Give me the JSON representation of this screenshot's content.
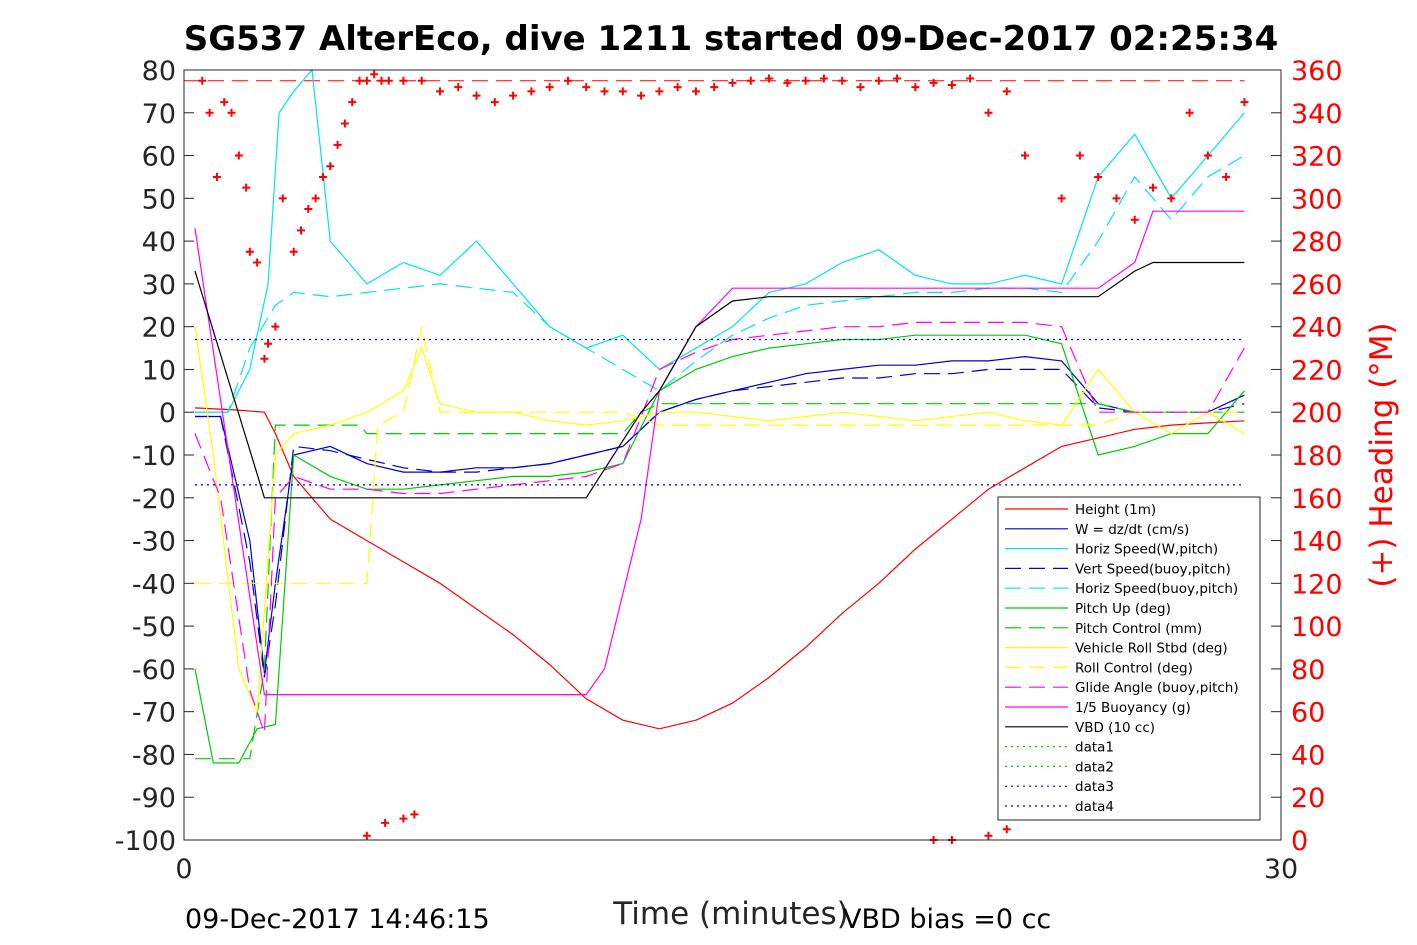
{
  "chart_data": {
    "type": "line",
    "title": "SG537 AlterEco, dive 1211 started 09-Dec-2017 02:25:34",
    "xlabel": "Time (minutes)",
    "ylabel_right": "(+) Heading (°M)",
    "xlim": [
      0,
      30
    ],
    "ylim": [
      -100,
      80
    ],
    "ylim_right": [
      0,
      360
    ],
    "x_ticks": [
      "0",
      "30"
    ],
    "y_ticks": [
      "80",
      "70",
      "60",
      "50",
      "40",
      "30",
      "20",
      "10",
      "0",
      "-10",
      "-20",
      "-30",
      "-40",
      "-50",
      "-60",
      "-70",
      "-80",
      "-90",
      "-100"
    ],
    "y_ticks_right": [
      "360",
      "340",
      "320",
      "300",
      "280",
      "260",
      "240",
      "220",
      "200",
      "180",
      "160",
      "140",
      "120",
      "100",
      "80",
      "60",
      "40",
      "20",
      "0"
    ],
    "footer_left": "09-Dec-2017 14:46:15",
    "footer_right": "VBD bias =0 cc",
    "legend_position": "bottom-right",
    "series": [
      {
        "name": "Height (1m)",
        "color": "#ff0000",
        "dash": "solid",
        "x": [
          0.3,
          1.5,
          2.2,
          2.5,
          3.0,
          4.0,
          5.0,
          6.0,
          7.0,
          8.0,
          9.0,
          10.0,
          11.0,
          12.0,
          13.0,
          14.0,
          15.0,
          16.0,
          17.0,
          18.0,
          19.0,
          20.0,
          21.0,
          22.0,
          23.0,
          24.0,
          25.0,
          26.0,
          27.0,
          28.0,
          29.0
        ],
        "y": [
          1,
          0.5,
          0,
          -5,
          -15,
          -25,
          -30,
          -35,
          -40,
          -46,
          -52,
          -59,
          -67,
          -72,
          -74,
          -72,
          -68,
          -62,
          -55,
          -47,
          -40,
          -32,
          -25,
          -18,
          -13,
          -8,
          -6,
          -4,
          -3,
          -2.5,
          -2
        ]
      },
      {
        "name": "W = dz/dt (cm/s)",
        "color": "#0000cc",
        "dash": "solid",
        "x": [
          0.3,
          1.0,
          1.8,
          2.2,
          2.5,
          3.0,
          4.0,
          5.0,
          6.0,
          7.0,
          8.0,
          9.0,
          10.0,
          11.0,
          12.0,
          13.0,
          14.0,
          15.0,
          16.0,
          17.0,
          18.0,
          19.0,
          20.0,
          21.0,
          22.0,
          23.0,
          24.0,
          25.0,
          26.0,
          27.0,
          28.0,
          29.0
        ],
        "y": [
          -1,
          -1,
          -30,
          -61,
          -40,
          -10,
          -8,
          -12,
          -14,
          -14,
          -13,
          -13,
          -12,
          -10,
          -8,
          0,
          3,
          5,
          7,
          9,
          10,
          11,
          11,
          12,
          12,
          13,
          12,
          2,
          0,
          0,
          0,
          4
        ]
      },
      {
        "name": "Horiz Speed(W,pitch)",
        "color": "#00e5e5",
        "dash": "solid",
        "x": [
          0.3,
          1.2,
          1.8,
          2.3,
          2.6,
          3.0,
          3.5,
          4.0,
          5.0,
          6.0,
          7.0,
          8.0,
          9.0,
          10.0,
          11.0,
          12.0,
          13.0,
          14.0,
          15.0,
          16.0,
          17.0,
          18.0,
          19.0,
          20.0,
          21.0,
          22.0,
          23.0,
          24.0,
          25.0,
          26.0,
          27.0,
          28.0,
          29.0
        ],
        "y": [
          0,
          0,
          10,
          30,
          70,
          75,
          80,
          40,
          30,
          35,
          32,
          40,
          30,
          20,
          15,
          18,
          10,
          15,
          20,
          28,
          30,
          35,
          38,
          32,
          30,
          30,
          32,
          30,
          55,
          65,
          50,
          60,
          70
        ]
      },
      {
        "name": "Vert Speed(buoy,pitch)",
        "color": "#0000cc",
        "dash": "dash",
        "x": [
          0.3,
          1.0,
          1.8,
          2.2,
          2.5,
          3.0,
          4.0,
          5.0,
          6.0,
          7.0,
          8.0,
          9.0,
          10.0,
          11.0,
          12.0,
          13.0,
          14.0,
          15.0,
          16.0,
          17.0,
          18.0,
          19.0,
          20.0,
          21.0,
          22.0,
          23.0,
          24.0,
          25.0,
          26.0,
          27.0,
          28.0,
          29.0
        ],
        "y": [
          -1,
          -1,
          -35,
          -62,
          -45,
          -8,
          -9,
          -11,
          -13,
          -14,
          -14,
          -13,
          -12,
          -10,
          -8,
          0,
          3,
          5,
          6,
          7,
          8,
          8,
          9,
          9,
          10,
          10,
          10,
          1,
          0,
          0,
          0,
          2
        ]
      },
      {
        "name": "Horiz Speed(buoy,pitch)",
        "color": "#00e5e5",
        "dash": "dash",
        "x": [
          0.3,
          1.2,
          1.8,
          2.5,
          3.0,
          4.0,
          5.0,
          6.0,
          7.0,
          8.0,
          9.0,
          10.0,
          11.0,
          12.0,
          13.0,
          14.0,
          15.0,
          16.0,
          17.0,
          18.0,
          19.0,
          20.0,
          21.0,
          22.0,
          23.0,
          24.0,
          25.0,
          26.0,
          27.0,
          28.0,
          29.0
        ],
        "y": [
          0,
          0,
          15,
          25,
          28,
          27,
          28,
          29,
          30,
          29,
          28,
          20,
          15,
          10,
          5,
          12,
          18,
          22,
          25,
          26,
          27,
          28,
          28,
          29,
          29,
          28,
          40,
          55,
          45,
          55,
          60
        ]
      },
      {
        "name": "Pitch Up (deg)",
        "color": "#00cc00",
        "dash": "solid",
        "x": [
          0.3,
          0.8,
          1.5,
          2.0,
          2.5,
          3.0,
          4.0,
          5.0,
          6.0,
          7.0,
          8.0,
          9.0,
          10.0,
          11.0,
          12.0,
          13.0,
          14.0,
          15.0,
          16.0,
          17.0,
          18.0,
          19.0,
          20.0,
          21.0,
          22.0,
          23.0,
          24.0,
          25.0,
          26.0,
          27.0,
          28.0,
          29.0
        ],
        "y": [
          -60,
          -82,
          -82,
          -74,
          -73,
          -10,
          -15,
          -18,
          -18,
          -17,
          -16,
          -15,
          -15,
          -14,
          -12,
          5,
          10,
          13,
          15,
          16,
          17,
          17,
          18,
          18,
          18,
          18,
          16,
          -10,
          -8,
          -5,
          -5,
          5
        ]
      },
      {
        "name": "Pitch Control (mm)",
        "color": "#00cc00",
        "dash": "dash",
        "x": [
          0.3,
          1.0,
          1.8,
          2.2,
          2.5,
          4.8,
          5.0,
          10.0,
          12.0,
          12.5,
          13.0,
          25.0,
          26.0,
          29.0
        ],
        "y": [
          -81,
          -81,
          -81,
          -60,
          -3,
          -3,
          -5,
          -5,
          -5,
          0,
          2,
          2,
          0,
          0
        ]
      },
      {
        "name": "Vehicle Roll Stbd (deg)",
        "color": "#ffff00",
        "dash": "solid",
        "x": [
          0.3,
          0.8,
          1.5,
          2.0,
          2.5,
          3.0,
          4.0,
          5.0,
          6.0,
          6.5,
          7.0,
          8.0,
          9.0,
          10.0,
          11.0,
          12.0,
          13.0,
          14.0,
          15.0,
          16.0,
          17.0,
          18.0,
          19.0,
          20.0,
          21.0,
          22.0,
          23.0,
          24.0,
          25.0,
          26.0,
          27.0,
          28.0,
          29.0
        ],
        "y": [
          20,
          -10,
          -60,
          -70,
          -10,
          -5,
          -3,
          0,
          5,
          15,
          2,
          0,
          0,
          -2,
          -3,
          -2,
          0,
          0,
          -1,
          -2,
          -1,
          0,
          -1,
          -2,
          -1,
          0,
          -2,
          -3,
          10,
          0,
          -5,
          0,
          -5
        ]
      },
      {
        "name": "Roll Control (deg)",
        "color": "#ffff00",
        "dash": "dash",
        "x": [
          0.3,
          1.0,
          2.0,
          2.5,
          3.0,
          4.0,
          5.0,
          5.3,
          6.0,
          6.5,
          7.0,
          8.0,
          12.0,
          13.0,
          25.0,
          26.0,
          27.0,
          29.0
        ],
        "y": [
          -40,
          -40,
          -40,
          -40,
          -40,
          -40,
          -40,
          -3,
          0,
          20,
          0,
          0,
          0,
          -3,
          -3,
          0,
          0,
          0
        ]
      },
      {
        "name": "Glide Angle (buoy,pitch)",
        "color": "#ff00ff",
        "dash": "dash",
        "x": [
          0.3,
          1.0,
          1.8,
          2.2,
          2.5,
          3.0,
          4.0,
          5.0,
          6.0,
          7.0,
          8.0,
          9.0,
          10.0,
          11.0,
          12.0,
          13.0,
          14.0,
          15.0,
          16.0,
          17.0,
          18.0,
          19.0,
          20.0,
          21.0,
          22.0,
          23.0,
          24.0,
          25.0,
          26.0,
          27.0,
          28.0,
          29.0
        ],
        "y": [
          -5,
          -20,
          -65,
          -75,
          -20,
          -15,
          -18,
          -18,
          -19,
          -19,
          -18,
          -17,
          -16,
          -15,
          -12,
          10,
          14,
          17,
          18,
          19,
          20,
          20,
          21,
          21,
          21,
          21,
          20,
          0,
          0,
          0,
          0,
          15
        ]
      },
      {
        "name": "1/5 Buoyancy (g)",
        "color": "#ff00ff",
        "dash": "solid",
        "x": [
          0.3,
          2.2,
          2.5,
          10.0,
          11.0,
          11.5,
          12.5,
          13.0,
          14.0,
          15.0,
          16.0,
          17.0,
          24.0,
          25.0,
          26.0,
          26.5,
          28.0,
          29.0
        ],
        "y": [
          43,
          -66,
          -66,
          -66,
          -66,
          -60,
          -25,
          5,
          20,
          29,
          29,
          29,
          29,
          29,
          35,
          47,
          47,
          47
        ]
      },
      {
        "name": "VBD (10 cc)",
        "color": "#000000",
        "dash": "solid",
        "x": [
          0.3,
          2.2,
          2.5,
          11.0,
          12.5,
          13.0,
          14.0,
          15.0,
          16.0,
          17.0,
          24.0,
          25.0,
          26.0,
          26.5,
          28.0,
          29.0
        ],
        "y": [
          33,
          -20,
          -20,
          -20,
          0,
          5,
          20,
          26,
          27,
          27,
          27,
          27,
          33,
          35,
          35,
          35
        ]
      },
      {
        "name": "data1",
        "color": "#00cc00",
        "dash": "dot",
        "x": [],
        "y": []
      },
      {
        "name": "data2",
        "color": "#00cc00",
        "dash": "dot",
        "x": [],
        "y": []
      },
      {
        "name": "data3",
        "color": "#0000cc",
        "dash": "dot",
        "x": [
          0.3,
          29.0
        ],
        "y": [
          17,
          17
        ]
      },
      {
        "name": "data4",
        "color": "#0000cc",
        "dash": "dot",
        "x": [
          0.3,
          29.0
        ],
        "y": [
          -17,
          -17
        ]
      }
    ],
    "reference_line": {
      "color": "#ff0000",
      "dash": "dash",
      "y_right": 355
    },
    "heading_points": {
      "color": "#ff0000",
      "x": [
        0.5,
        0.7,
        0.9,
        1.1,
        1.3,
        1.5,
        1.7,
        1.8,
        2.0,
        2.2,
        2.3,
        2.5,
        2.7,
        3.0,
        3.2,
        3.4,
        3.6,
        3.8,
        4.0,
        4.2,
        4.4,
        4.6,
        4.8,
        5.0,
        5.2,
        5.4,
        5.6,
        6.0,
        6.5,
        7.0,
        7.5,
        8.0,
        8.5,
        9.0,
        9.5,
        10.0,
        10.5,
        11.0,
        11.5,
        12.0,
        12.5,
        13.0,
        13.5,
        14.0,
        14.5,
        15.0,
        15.5,
        16.0,
        16.5,
        17.0,
        17.5,
        18.0,
        18.5,
        19.0,
        19.5,
        20.0,
        20.5,
        21.0,
        21.5,
        22.0,
        22.5,
        23.0,
        24.0,
        24.5,
        25.0,
        25.5,
        26.0,
        26.5,
        27.0,
        27.5,
        28.0,
        28.5,
        29.0,
        5.0,
        5.5,
        6.0,
        6.3,
        20.5,
        21.0,
        22.0,
        22.5
      ],
      "y": [
        355,
        340,
        310,
        345,
        340,
        320,
        305,
        275,
        270,
        225,
        232,
        240,
        300,
        275,
        285,
        295,
        300,
        310,
        315,
        325,
        335,
        345,
        355,
        355,
        358,
        355,
        355,
        355,
        355,
        350,
        352,
        348,
        345,
        348,
        350,
        352,
        355,
        352,
        350,
        350,
        348,
        350,
        352,
        350,
        352,
        354,
        355,
        356,
        354,
        355,
        356,
        355,
        352,
        355,
        356,
        352,
        354,
        353,
        356,
        340,
        350,
        320,
        300,
        320,
        310,
        300,
        290,
        305,
        300,
        340,
        320,
        310,
        345,
        2,
        8,
        10,
        12,
        0,
        0,
        2,
        5
      ]
    }
  }
}
